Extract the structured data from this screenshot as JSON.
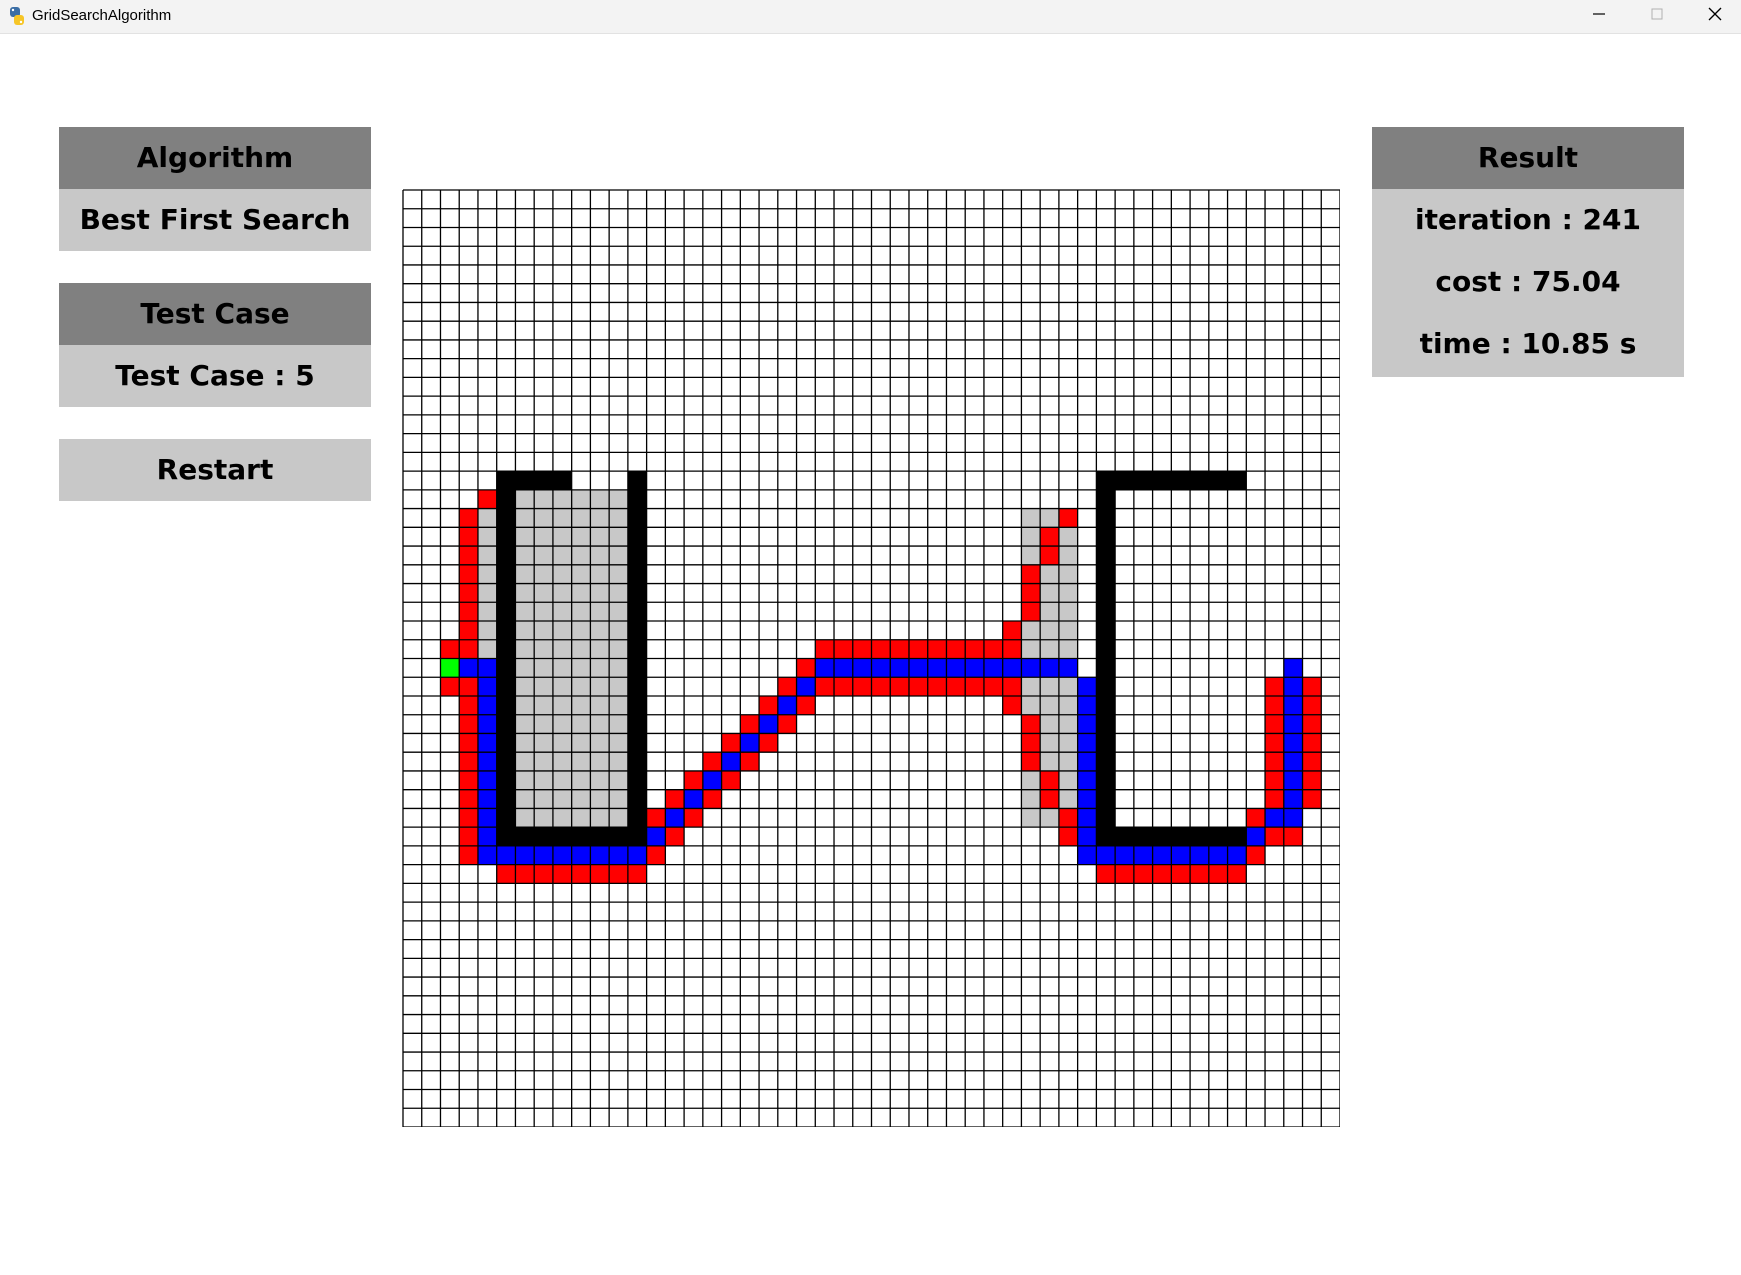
{
  "window": {
    "title": "GridSearchAlgorithm",
    "app_icon": "python-logo-icon",
    "controls": [
      "minimize-icon",
      "maximize-icon",
      "close-icon"
    ]
  },
  "algorithm": {
    "header": "Algorithm",
    "value": "Best First Search"
  },
  "test_case": {
    "header": "Test Case",
    "value": "Test Case : 5"
  },
  "restart": {
    "label": "Restart"
  },
  "result": {
    "header": "Result",
    "iteration": "iteration : 241",
    "cost": "cost : 75.04",
    "time": "time : 10.85 s"
  },
  "grid": {
    "cols": 50,
    "rows": 50,
    "colors": {
      "empty": "#ffffff",
      "line": "#000000",
      "wall": "#000000",
      "visited": "#c8c8c8",
      "frontier": "#ff0000",
      "path": "#0000ff",
      "start": "#00ff00"
    },
    "walls": [
      [
        5,
        15,
        8,
        15
      ],
      [
        5,
        15,
        5,
        34
      ],
      [
        5,
        34,
        12,
        34
      ],
      [
        12,
        15,
        12,
        34
      ],
      [
        37,
        15,
        44,
        15
      ],
      [
        37,
        15,
        37,
        34
      ],
      [
        37,
        34,
        44,
        34
      ]
    ],
    "visited": [
      [
        4,
        16,
        11,
        33
      ],
      [
        33,
        17,
        35,
        33
      ]
    ],
    "frontier": [
      [
        4,
        16,
        4,
        16
      ],
      [
        3,
        17,
        3,
        25
      ],
      [
        2,
        24,
        3,
        24
      ],
      [
        2,
        26,
        3,
        26
      ],
      [
        3,
        26,
        3,
        35
      ],
      [
        4,
        35,
        4,
        35
      ],
      [
        5,
        36,
        12,
        36
      ],
      [
        35,
        17,
        35,
        17
      ],
      [
        34,
        18,
        34,
        19
      ],
      [
        33,
        20,
        33,
        22
      ],
      [
        32,
        23,
        32,
        23
      ],
      [
        22,
        24,
        32,
        24
      ],
      [
        22,
        26,
        32,
        26
      ],
      [
        32,
        27,
        32,
        27
      ],
      [
        33,
        28,
        33,
        30
      ],
      [
        34,
        31,
        34,
        32
      ],
      [
        35,
        33,
        35,
        34
      ],
      [
        36,
        35,
        36,
        35
      ],
      [
        37,
        36,
        44,
        36
      ],
      [
        45,
        35,
        45,
        35
      ],
      [
        46,
        34,
        46,
        34
      ],
      [
        46,
        26,
        46,
        33
      ],
      [
        48,
        26,
        48,
        32
      ],
      [
        47,
        34,
        47,
        34
      ],
      [
        45,
        33,
        45,
        33
      ],
      [
        21,
        25,
        21,
        25
      ],
      [
        20,
        26,
        20,
        26
      ],
      [
        19,
        27,
        19,
        27
      ],
      [
        18,
        28,
        18,
        28
      ],
      [
        17,
        29,
        17,
        29
      ],
      [
        16,
        30,
        16,
        30
      ],
      [
        15,
        31,
        15,
        31
      ],
      [
        14,
        32,
        14,
        32
      ],
      [
        13,
        33,
        13,
        33
      ],
      [
        13,
        35,
        13,
        35
      ],
      [
        22,
        26,
        22,
        26
      ],
      [
        21,
        27,
        21,
        27
      ],
      [
        20,
        28,
        20,
        28
      ],
      [
        19,
        29,
        19,
        29
      ],
      [
        18,
        30,
        18,
        30
      ],
      [
        17,
        31,
        17,
        31
      ],
      [
        16,
        32,
        16,
        32
      ],
      [
        15,
        33,
        15,
        33
      ],
      [
        14,
        34,
        14,
        34
      ]
    ],
    "path": [
      [
        3,
        25,
        3,
        25
      ],
      [
        4,
        25,
        4,
        34
      ],
      [
        4,
        35,
        4,
        35
      ],
      [
        5,
        35,
        12,
        35
      ],
      [
        13,
        34,
        13,
        34
      ],
      [
        14,
        33,
        14,
        33
      ],
      [
        15,
        32,
        15,
        32
      ],
      [
        16,
        31,
        16,
        31
      ],
      [
        17,
        30,
        17,
        30
      ],
      [
        18,
        29,
        18,
        29
      ],
      [
        19,
        28,
        19,
        28
      ],
      [
        20,
        27,
        20,
        27
      ],
      [
        21,
        26,
        21,
        26
      ],
      [
        22,
        25,
        22,
        25
      ],
      [
        22,
        25,
        35,
        25
      ],
      [
        36,
        26,
        36,
        34
      ],
      [
        36,
        35,
        36,
        35
      ],
      [
        37,
        35,
        44,
        35
      ],
      [
        45,
        34,
        45,
        34
      ],
      [
        46,
        33,
        46,
        33
      ],
      [
        47,
        25,
        47,
        33
      ]
    ],
    "start": [
      2,
      25
    ]
  }
}
